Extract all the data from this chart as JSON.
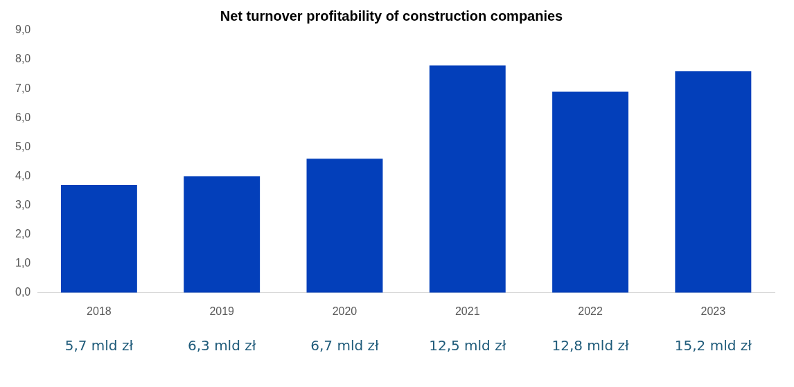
{
  "chart_data": {
    "type": "bar",
    "title": "Net turnover profitability of construction companies",
    "categories": [
      "2018",
      "2019",
      "2020",
      "2021",
      "2022",
      "2023"
    ],
    "values": [
      3.7,
      4.0,
      4.6,
      7.8,
      6.9,
      7.6
    ],
    "color": "#033fba",
    "ylim": [
      0,
      9
    ],
    "yticks": [
      {
        "value": 0,
        "label": "0,0"
      },
      {
        "value": 1,
        "label": "1,0"
      },
      {
        "value": 2,
        "label": "2,0"
      },
      {
        "value": 3,
        "label": "3,0"
      },
      {
        "value": 4,
        "label": "4,0"
      },
      {
        "value": 5,
        "label": "5,0"
      },
      {
        "value": 6,
        "label": "6,0"
      },
      {
        "value": 7,
        "label": "7,0"
      },
      {
        "value": 8,
        "label": "8,0"
      },
      {
        "value": 9,
        "label": "9,0"
      }
    ],
    "grid": false,
    "legend": false,
    "annotations": [
      "5,7 mld zł",
      "6,3 mld zł",
      "6,7 mld zł",
      "12,5 mld zł",
      "12,8 mld zł",
      "15,2 mld zł"
    ]
  }
}
